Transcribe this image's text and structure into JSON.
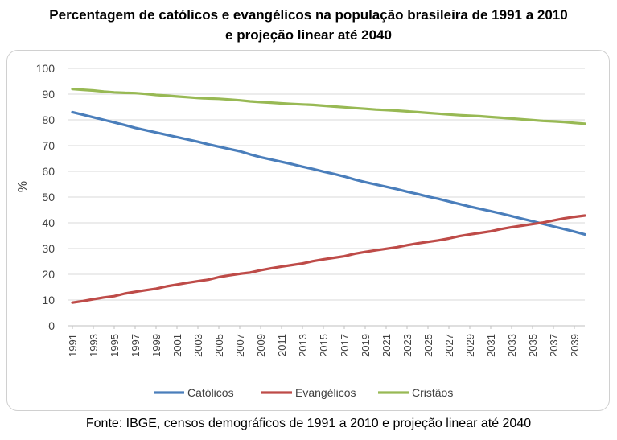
{
  "title_line1": "Percentagem de católicos e evangélicos na população brasileira de 1991 a 2010",
  "title_line2": "e projeção linear até 2040",
  "source": "Fonte: IBGE, censos demográficos de 1991 a 2010 e projeção linear até 2040",
  "chart_data": {
    "type": "line",
    "title": "Percentagem de católicos e evangélicos na população brasileira de 1991 a 2010 e projeção linear até 2040",
    "xlabel": "",
    "ylabel": "%",
    "ylim": [
      0,
      100
    ],
    "yticks": [
      0,
      10,
      20,
      30,
      40,
      50,
      60,
      70,
      80,
      90,
      100
    ],
    "xticks": [
      "1991",
      "1993",
      "1995",
      "1997",
      "1999",
      "2001",
      "2003",
      "2005",
      "2007",
      "2009",
      "2011",
      "2013",
      "2015",
      "2017",
      "2019",
      "2021",
      "2023",
      "2025",
      "2027",
      "2029",
      "2031",
      "2033",
      "2035",
      "2037",
      "2039"
    ],
    "grid": true,
    "legend": "bottom",
    "x": [
      1991,
      1992,
      1993,
      1994,
      1995,
      1996,
      1997,
      1998,
      1999,
      2000,
      2001,
      2002,
      2003,
      2004,
      2005,
      2006,
      2007,
      2008,
      2009,
      2010,
      2011,
      2012,
      2013,
      2014,
      2015,
      2016,
      2017,
      2018,
      2019,
      2020,
      2021,
      2022,
      2023,
      2024,
      2025,
      2026,
      2027,
      2028,
      2029,
      2030,
      2031,
      2032,
      2033,
      2034,
      2035,
      2036,
      2037,
      2038,
      2039,
      2040
    ],
    "series": [
      {
        "name": "Católicos",
        "color": "#4a7ebb",
        "values": [
          83.0,
          82.0,
          81.0,
          80.0,
          79.0,
          78.0,
          76.9,
          76.0,
          75.1,
          74.2,
          73.3,
          72.4,
          71.5,
          70.5,
          69.6,
          68.7,
          67.8,
          66.6,
          65.5,
          64.6,
          63.7,
          62.8,
          61.8,
          60.9,
          59.9,
          59.0,
          58.0,
          56.8,
          55.8,
          54.9,
          54.0,
          53.1,
          52.1,
          51.2,
          50.2,
          49.3,
          48.3,
          47.3,
          46.3,
          45.4,
          44.5,
          43.6,
          42.6,
          41.6,
          40.6,
          39.6,
          38.6,
          37.6,
          36.6,
          35.5
        ]
      },
      {
        "name": "Evangélicos",
        "color": "#be4b48",
        "values": [
          9.0,
          9.6,
          10.3,
          11.0,
          11.5,
          12.5,
          13.2,
          13.8,
          14.4,
          15.3,
          16.0,
          16.7,
          17.3,
          17.9,
          18.9,
          19.6,
          20.2,
          20.7,
          21.6,
          22.3,
          23.0,
          23.6,
          24.2,
          25.1,
          25.8,
          26.4,
          27.0,
          28.0,
          28.7,
          29.3,
          29.9,
          30.5,
          31.3,
          32.0,
          32.6,
          33.2,
          33.9,
          34.8,
          35.5,
          36.1,
          36.7,
          37.6,
          38.3,
          38.9,
          39.5,
          40.1,
          40.9,
          41.7,
          42.3,
          42.8
        ]
      },
      {
        "name": "Cristãos",
        "color": "#98b954",
        "values": [
          92.0,
          91.7,
          91.4,
          91.0,
          90.7,
          90.5,
          90.4,
          90.1,
          89.7,
          89.4,
          89.1,
          88.8,
          88.5,
          88.3,
          88.2,
          87.9,
          87.6,
          87.2,
          86.9,
          86.7,
          86.4,
          86.2,
          86.0,
          85.8,
          85.5,
          85.2,
          84.9,
          84.6,
          84.3,
          84.0,
          83.8,
          83.6,
          83.3,
          83.0,
          82.7,
          82.4,
          82.1,
          81.8,
          81.6,
          81.4,
          81.1,
          80.8,
          80.5,
          80.2,
          79.9,
          79.6,
          79.4,
          79.2,
          78.8,
          78.5
        ]
      }
    ]
  }
}
